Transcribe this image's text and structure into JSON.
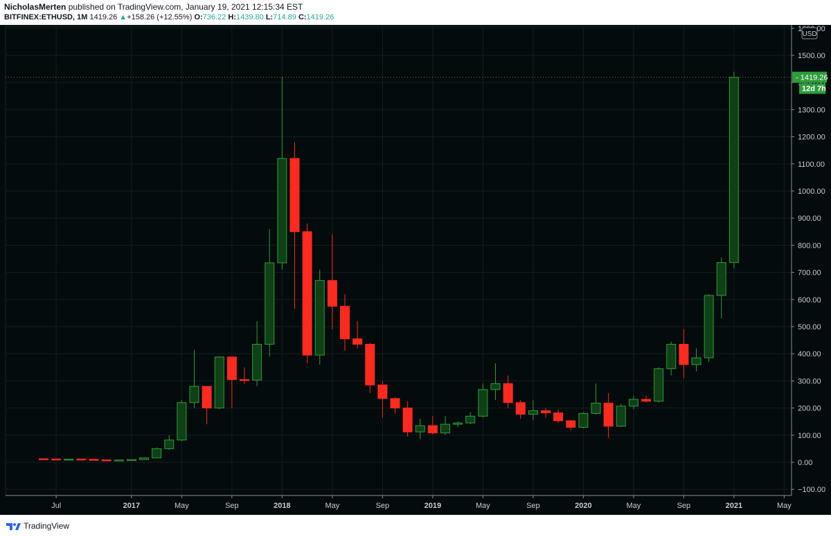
{
  "header": {
    "author": "NicholasMerten",
    "published_text": " published on TradingView.com, January 19, 2021 12:15:34 EST",
    "symbol": "BITFINEX:ETHUSD, 1M",
    "last": "1419.26",
    "change_arrow": "▲",
    "change": "+158.26 (+12.55%)",
    "o_label": "O:",
    "o_value": "736.22",
    "h_label": "H:",
    "h_value": "1439.80",
    "l_label": "L:",
    "l_value": "714.89",
    "c_label": "C:",
    "c_value": "1419.26"
  },
  "footer": {
    "brand": "TradingView"
  },
  "colors": {
    "up": "#2d9c3c",
    "up_fill": "#0f4016",
    "down": "#ff2a1f",
    "bg": "#040b0c",
    "price_tag": "#2d9c3c"
  },
  "chart_data": {
    "type": "candlestick",
    "title": "BITFINEX:ETHUSD, 1M",
    "currency": "USD",
    "ylim": [
      -120,
      1580
    ],
    "y_ticks": [
      -100,
      0,
      100,
      200,
      300,
      400,
      500,
      600,
      700,
      800,
      900,
      1000,
      1100,
      1200,
      1300,
      1400,
      1500,
      1600
    ],
    "y_tick_labels": [
      "−100.00",
      "0.00",
      "100.00",
      "200.00",
      "300.00",
      "400.00",
      "500.00",
      "600.00",
      "700.00",
      "800.00",
      "900.00",
      "1000.00",
      "1100.00",
      "1200.00",
      "1300.00",
      "1400.00",
      "1500.00",
      "1600.00"
    ],
    "x_ticks": [
      {
        "label": "Jul",
        "index": 1,
        "bold": false
      },
      {
        "label": "2017",
        "index": 7,
        "bold": true
      },
      {
        "label": "May",
        "index": 11,
        "bold": false
      },
      {
        "label": "Sep",
        "index": 15,
        "bold": false
      },
      {
        "label": "2018",
        "index": 19,
        "bold": true
      },
      {
        "label": "May",
        "index": 23,
        "bold": false
      },
      {
        "label": "Sep",
        "index": 27,
        "bold": false
      },
      {
        "label": "2019",
        "index": 31,
        "bold": true
      },
      {
        "label": "May",
        "index": 35,
        "bold": false
      },
      {
        "label": "Sep",
        "index": 39,
        "bold": false
      },
      {
        "label": "2020",
        "index": 43,
        "bold": true
      },
      {
        "label": "May",
        "index": 47,
        "bold": false
      },
      {
        "label": "Sep",
        "index": 51,
        "bold": false
      },
      {
        "label": "2021",
        "index": 55,
        "bold": true
      },
      {
        "label": "May",
        "index": 59,
        "bold": false
      }
    ],
    "last_price_label": "1419.26",
    "countdown_label": "12d 7h",
    "candles": [
      {
        "o": 13,
        "h": 14,
        "l": 11,
        "c": 12
      },
      {
        "o": 12,
        "h": 13,
        "l": 11,
        "c": 11
      },
      {
        "o": 11,
        "h": 12,
        "l": 10,
        "c": 11.5
      },
      {
        "o": 12,
        "h": 13,
        "l": 10,
        "c": 11
      },
      {
        "o": 11,
        "h": 11,
        "l": 8,
        "c": 9
      },
      {
        "o": 9,
        "h": 9.5,
        "l": 7,
        "c": 8
      },
      {
        "o": 8,
        "h": 9,
        "l": 7,
        "c": 8.5
      },
      {
        "o": 8,
        "h": 11,
        "l": 8,
        "c": 10
      },
      {
        "o": 10,
        "h": 17,
        "l": 10,
        "c": 16
      },
      {
        "o": 16,
        "h": 55,
        "l": 15,
        "c": 50
      },
      {
        "o": 50,
        "h": 100,
        "l": 45,
        "c": 82
      },
      {
        "o": 82,
        "h": 230,
        "l": 78,
        "c": 220
      },
      {
        "o": 220,
        "h": 415,
        "l": 200,
        "c": 280
      },
      {
        "o": 280,
        "h": 280,
        "l": 140,
        "c": 200
      },
      {
        "o": 200,
        "h": 390,
        "l": 195,
        "c": 388
      },
      {
        "o": 388,
        "h": 390,
        "l": 200,
        "c": 305
      },
      {
        "o": 305,
        "h": 350,
        "l": 290,
        "c": 303
      },
      {
        "o": 303,
        "h": 520,
        "l": 280,
        "c": 435
      },
      {
        "o": 435,
        "h": 860,
        "l": 390,
        "c": 735
      },
      {
        "o": 735,
        "h": 1420,
        "l": 710,
        "c": 1120
      },
      {
        "o": 1120,
        "h": 1180,
        "l": 565,
        "c": 850
      },
      {
        "o": 850,
        "h": 880,
        "l": 365,
        "c": 395
      },
      {
        "o": 395,
        "h": 710,
        "l": 360,
        "c": 670
      },
      {
        "o": 670,
        "h": 840,
        "l": 490,
        "c": 575
      },
      {
        "o": 575,
        "h": 620,
        "l": 410,
        "c": 455
      },
      {
        "o": 455,
        "h": 520,
        "l": 420,
        "c": 435
      },
      {
        "o": 435,
        "h": 440,
        "l": 255,
        "c": 285
      },
      {
        "o": 285,
        "h": 300,
        "l": 165,
        "c": 235
      },
      {
        "o": 235,
        "h": 240,
        "l": 180,
        "c": 200
      },
      {
        "o": 200,
        "h": 225,
        "l": 95,
        "c": 112
      },
      {
        "o": 112,
        "h": 160,
        "l": 85,
        "c": 135
      },
      {
        "o": 135,
        "h": 170,
        "l": 102,
        "c": 108
      },
      {
        "o": 108,
        "h": 170,
        "l": 100,
        "c": 140
      },
      {
        "o": 140,
        "h": 150,
        "l": 130,
        "c": 145
      },
      {
        "o": 145,
        "h": 185,
        "l": 140,
        "c": 170
      },
      {
        "o": 170,
        "h": 290,
        "l": 165,
        "c": 268
      },
      {
        "o": 268,
        "h": 365,
        "l": 230,
        "c": 290
      },
      {
        "o": 290,
        "h": 320,
        "l": 200,
        "c": 220
      },
      {
        "o": 220,
        "h": 230,
        "l": 160,
        "c": 177
      },
      {
        "o": 177,
        "h": 230,
        "l": 155,
        "c": 190
      },
      {
        "o": 190,
        "h": 200,
        "l": 165,
        "c": 182
      },
      {
        "o": 182,
        "h": 195,
        "l": 145,
        "c": 153
      },
      {
        "o": 153,
        "h": 155,
        "l": 118,
        "c": 129
      },
      {
        "o": 129,
        "h": 185,
        "l": 125,
        "c": 180
      },
      {
        "o": 180,
        "h": 290,
        "l": 175,
        "c": 218
      },
      {
        "o": 218,
        "h": 255,
        "l": 90,
        "c": 133
      },
      {
        "o": 133,
        "h": 215,
        "l": 130,
        "c": 207
      },
      {
        "o": 207,
        "h": 245,
        "l": 195,
        "c": 232
      },
      {
        "o": 232,
        "h": 245,
        "l": 220,
        "c": 225
      },
      {
        "o": 225,
        "h": 350,
        "l": 220,
        "c": 345
      },
      {
        "o": 345,
        "h": 445,
        "l": 320,
        "c": 435
      },
      {
        "o": 435,
        "h": 490,
        "l": 310,
        "c": 360
      },
      {
        "o": 360,
        "h": 420,
        "l": 335,
        "c": 385
      },
      {
        "o": 385,
        "h": 620,
        "l": 370,
        "c": 615
      },
      {
        "o": 615,
        "h": 755,
        "l": 530,
        "c": 736
      },
      {
        "o": 736.22,
        "h": 1439.8,
        "l": 714.89,
        "c": 1419.26
      }
    ]
  }
}
